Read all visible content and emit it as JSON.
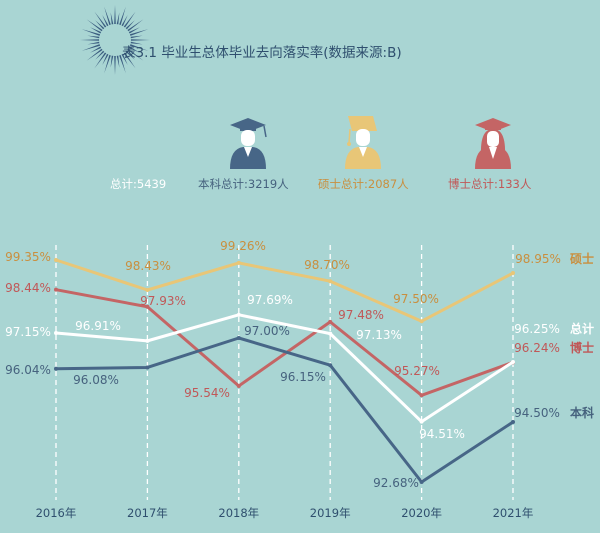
{
  "header": {
    "title": "表3.1  毕业生总体毕业去向落实率(数据来源:B)"
  },
  "legend": {
    "total": {
      "label": "总计:5439"
    },
    "bachelor": {
      "label": "本科总计:3219人"
    },
    "master": {
      "label": "硕士总计:2087人"
    },
    "doctor": {
      "label": "博士总计:133人"
    }
  },
  "colors": {
    "background": "#a9d5d3",
    "master": "#e8c677",
    "doctor": "#c46565",
    "total": "#ffffff",
    "bachelor": "#476687",
    "master_text": "#c98f3f",
    "doctor_text": "#c05858",
    "bachelor_text": "#46627e",
    "total_text": "#ffffff"
  },
  "chart_data": {
    "type": "line",
    "x": [
      "2016年",
      "2017年",
      "2018年",
      "2019年",
      "2020年",
      "2021年"
    ],
    "y_unit": "%",
    "series": [
      {
        "key": "master",
        "name": "硕士",
        "values": [
          99.35,
          98.43,
          99.26,
          98.7,
          97.5,
          98.95
        ],
        "labels": [
          "99.35%",
          "98.43%",
          "99.26%",
          "98.70%",
          "97.50%",
          "98.95%"
        ]
      },
      {
        "key": "doctor",
        "name": "博士",
        "values": [
          98.44,
          97.93,
          95.54,
          97.48,
          95.27,
          96.24
        ],
        "labels": [
          "98.44%",
          "97.93%",
          "95.54%",
          "97.48%",
          "95.27%",
          "96.24%"
        ]
      },
      {
        "key": "total",
        "name": "总计",
        "values": [
          97.15,
          96.91,
          97.69,
          97.13,
          94.51,
          96.25
        ],
        "labels": [
          "97.15%",
          "96.91%",
          "97.69%",
          "97.13%",
          "94.51%",
          "96.25%"
        ]
      },
      {
        "key": "bachelor",
        "name": "本科",
        "values": [
          96.04,
          96.08,
          97.0,
          96.15,
          92.68,
          94.5
        ],
        "labels": [
          "96.04%",
          "96.08%",
          "97.00%",
          "96.15%",
          "92.68%",
          "94.50%"
        ]
      }
    ]
  }
}
